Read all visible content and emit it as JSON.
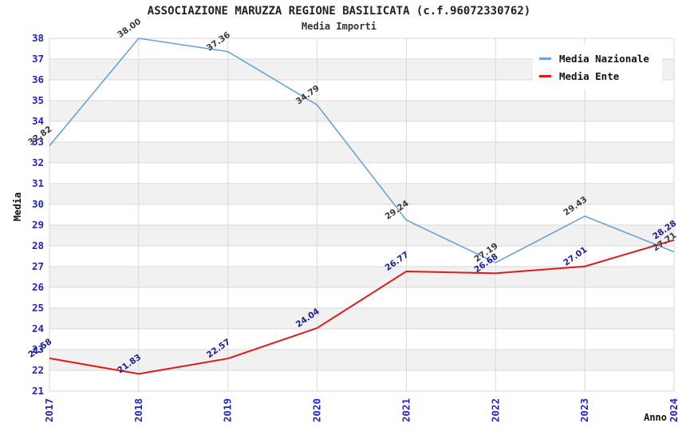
{
  "title": "ASSOCIAZIONE MARUZZA REGIONE BASILICATA (c.f.96072330762)",
  "subtitle": "Media Importi",
  "axes": {
    "x_label": "Anno",
    "y_label": "Media"
  },
  "legend": {
    "position": "top-right",
    "items": [
      {
        "label": "Media Nazionale",
        "color": "#6ba3d6"
      },
      {
        "label": "Media Ente",
        "color": "#e01a1a"
      }
    ]
  },
  "colors": {
    "axis_tick_text": "#2222cc",
    "grid_line": "#d9d9d9",
    "band_gray": "#f1f1f1",
    "band_white": "#ffffff",
    "title_text": "#222222",
    "nazionale_label_text": "#3a3a3a",
    "ente_label_text": "#202090"
  },
  "chart_data": {
    "type": "line",
    "title": "ASSOCIAZIONE MARUZZA REGIONE BASILICATA (c.f.96072330762)",
    "subtitle": "Media Importi",
    "xlabel": "Anno",
    "ylabel": "Media",
    "x": [
      "2017",
      "2018",
      "2019",
      "2020",
      "2021",
      "2022",
      "2023",
      "2024"
    ],
    "series": [
      {
        "name": "Media Nazionale",
        "color": "#6ba3d6",
        "label_color": "#3a3a3a",
        "stroke_width": 1.6,
        "values": [
          32.82,
          38.0,
          37.36,
          34.79,
          29.24,
          27.19,
          29.43,
          27.71
        ]
      },
      {
        "name": "Media Ente",
        "color": "#e01a1a",
        "label_color": "#202090",
        "stroke_width": 2,
        "values": [
          22.58,
          21.83,
          22.57,
          24.04,
          26.77,
          26.68,
          27.01,
          28.28
        ]
      }
    ],
    "ylim": [
      21,
      38
    ],
    "y_ticks": [
      21,
      22,
      23,
      24,
      25,
      26,
      27,
      28,
      29,
      30,
      31,
      32,
      33,
      34,
      35,
      36,
      37,
      38
    ],
    "grid": true,
    "alternating_bands": true,
    "legend_position": "top-right"
  }
}
